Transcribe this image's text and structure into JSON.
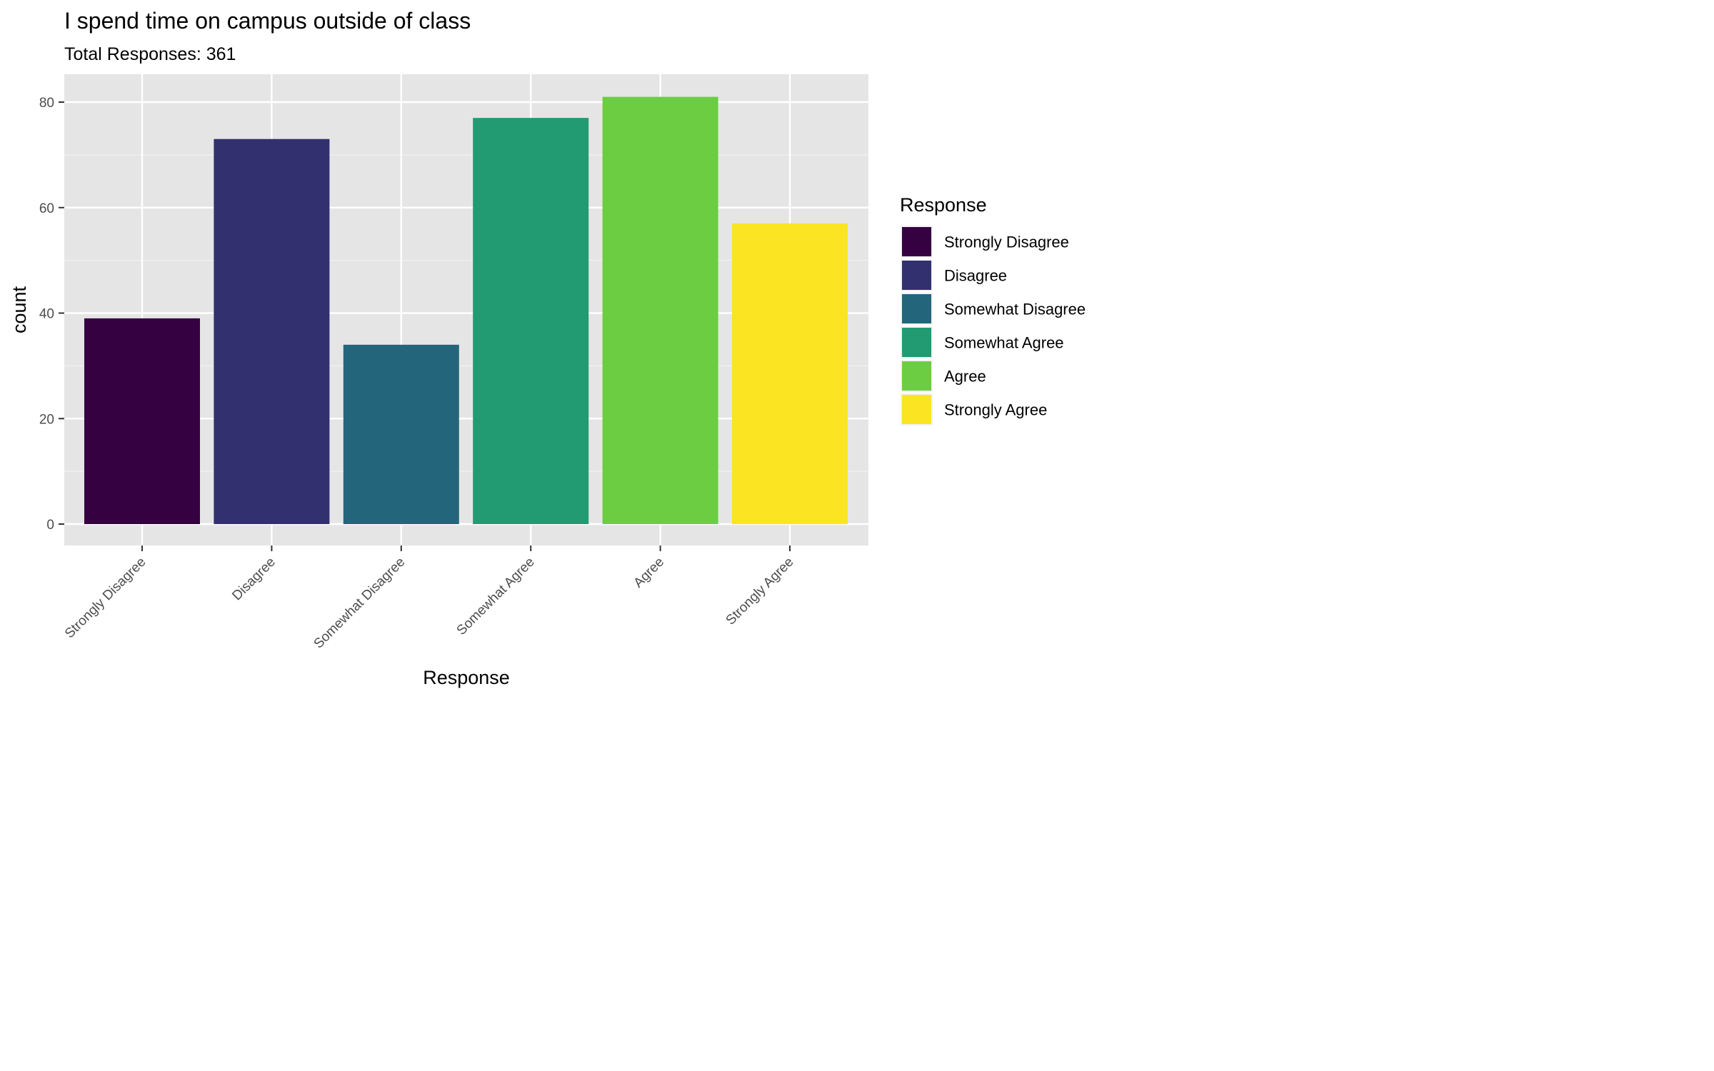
{
  "chart_data": {
    "type": "bar",
    "title": "I spend time on campus outside of class",
    "subtitle": "Total Responses: 361",
    "xlabel": "Response",
    "ylabel": "count",
    "categories": [
      "Strongly Disagree",
      "Disagree",
      "Somewhat Disagree",
      "Somewhat Agree",
      "Agree",
      "Strongly Agree"
    ],
    "values": [
      39,
      73,
      34,
      77,
      81,
      57
    ],
    "colors": [
      "#360140",
      "#32306f",
      "#23667b",
      "#229b72",
      "#6ccd43",
      "#fbe421"
    ],
    "ylim": [
      0,
      85
    ],
    "yticks": [
      0,
      20,
      40,
      60,
      80
    ],
    "grid": true,
    "panel_background": "#e5e5e5",
    "legend": {
      "title": "Response",
      "position": "right",
      "entries": [
        "Strongly Disagree",
        "Disagree",
        "Somewhat Disagree",
        "Somewhat Agree",
        "Agree",
        "Strongly Agree"
      ]
    }
  }
}
